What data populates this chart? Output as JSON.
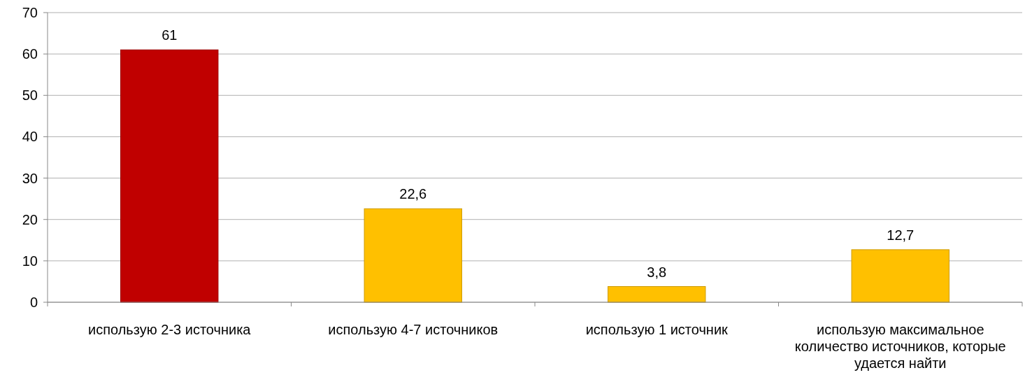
{
  "chart_data": {
    "type": "bar",
    "categories": [
      "использую 2-3 источника",
      "использую 4-7 источников",
      "использую 1 источник",
      "использую максимальное количество источников, которые удается найти"
    ],
    "values": [
      61,
      22.6,
      3.8,
      12.7
    ],
    "colors": [
      "#c00000",
      "#ffc000",
      "#ffc000",
      "#ffc000"
    ],
    "value_labels": [
      "61",
      "22,6",
      "3,8",
      "12,7"
    ],
    "ylim": [
      0,
      70
    ],
    "yticks": [
      0,
      10,
      20,
      30,
      40,
      50,
      60,
      70
    ],
    "grid": "y"
  }
}
